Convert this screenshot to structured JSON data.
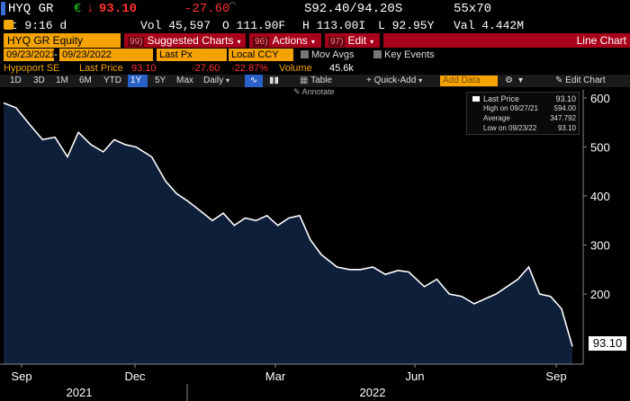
{
  "quote_bar": {
    "ticker": "HYQ GR",
    "currency_symbol": "€",
    "last": "93.10",
    "change": "-27.60",
    "bid_ask": "S92.40/94.20S",
    "size": "55x70",
    "time": "At 9:16 d",
    "volume": "Vol 45,597",
    "open": "O 111.90F",
    "high": "H 113.00I",
    "low": "L 92.95Y",
    "value": "Val 4.442M"
  },
  "menu": {
    "security": "HYQ GR Equity",
    "suggested_num": "99)",
    "suggested": "Suggested Charts",
    "actions_num": "96)",
    "actions": "Actions",
    "edit_num": "97)",
    "edit": "Edit",
    "title": "Line Chart"
  },
  "params": {
    "start": "09/23/2021",
    "end": "09/23/2022",
    "field": "Last Px",
    "ccy": "Local CCY",
    "mov_avgs": "Mov Avgs",
    "key_events": "Key Events"
  },
  "legend_row": {
    "name": "Hypoport SE",
    "field": "Last Price",
    "last": "93.10",
    "change": "-27.60",
    "pct": "-22.87%",
    "vol_label": "Volume",
    "vol": "45.6k"
  },
  "toolbar": {
    "ranges": [
      "1D",
      "3D",
      "1M",
      "6M",
      "YTD",
      "1Y",
      "5Y",
      "Max"
    ],
    "selected_range": "1Y",
    "frequency": "Daily",
    "table": "Table",
    "quick_add": "Quick-Add",
    "add_data_placeholder": "Add Data",
    "edit_chart": "Edit Chart",
    "annotate": "Annotate"
  },
  "legend_box": {
    "last_label": "Last Price",
    "last_val": "93.10",
    "high_label": "High on 09/27/21",
    "high_val": "594.00",
    "avg_label": "Average",
    "avg_val": "347.792",
    "low_label": "Low on 09/23/22",
    "low_val": "93.10"
  },
  "last_price_tag": "93.10",
  "colors": {
    "amber": "#f4a300",
    "red": "#a8001a",
    "area": "#0e1f3a",
    "line": "#ffffff"
  },
  "chart_data": {
    "type": "area",
    "title": "",
    "xlabel": "",
    "ylabel": "",
    "ylim": [
      80,
      620
    ],
    "y_ticks": [
      "200",
      "300",
      "400",
      "500",
      "600"
    ],
    "x_month_labels": [
      "Sep",
      "Dec",
      "Mar",
      "Jun",
      "Sep"
    ],
    "x_year_labels": [
      "2021",
      "2022"
    ],
    "grid": false,
    "series": [
      {
        "name": "Last Price",
        "x": [
          "2021-09-23",
          "2021-10-01",
          "2021-10-10",
          "2021-10-18",
          "2021-10-26",
          "2021-11-03",
          "2021-11-10",
          "2021-11-18",
          "2021-11-26",
          "2021-12-03",
          "2021-12-10",
          "2021-12-17",
          "2021-12-27",
          "2022-01-05",
          "2022-01-12",
          "2022-01-19",
          "2022-01-27",
          "2022-02-04",
          "2022-02-11",
          "2022-02-18",
          "2022-02-25",
          "2022-03-04",
          "2022-03-11",
          "2022-03-18",
          "2022-03-25",
          "2022-04-01",
          "2022-04-08",
          "2022-04-15",
          "2022-04-25",
          "2022-05-03",
          "2022-05-10",
          "2022-05-18",
          "2022-05-26",
          "2022-06-03",
          "2022-06-10",
          "2022-06-20",
          "2022-06-28",
          "2022-07-06",
          "2022-07-14",
          "2022-07-22",
          "2022-07-29",
          "2022-08-05",
          "2022-08-12",
          "2022-08-19",
          "2022-08-26",
          "2022-09-02",
          "2022-09-09",
          "2022-09-16",
          "2022-09-23"
        ],
        "y": [
          590,
          580,
          545,
          515,
          520,
          480,
          530,
          505,
          490,
          515,
          505,
          500,
          480,
          430,
          405,
          390,
          370,
          350,
          365,
          340,
          355,
          350,
          360,
          340,
          355,
          360,
          310,
          280,
          255,
          250,
          250,
          255,
          240,
          248,
          245,
          215,
          230,
          200,
          195,
          180,
          190,
          200,
          215,
          230,
          255,
          200,
          195,
          170,
          93.1
        ]
      }
    ]
  }
}
